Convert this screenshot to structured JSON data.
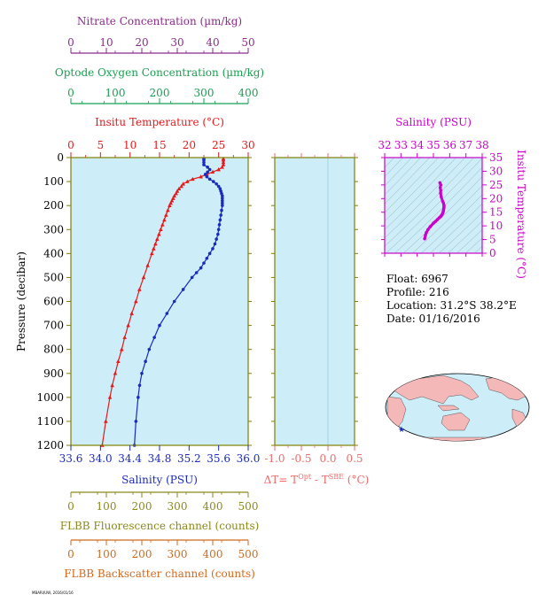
{
  "colors": {
    "nitrate": "#8b2a8b",
    "oxygen": "#18a050",
    "temperature": "#e41a1c",
    "salinity": "#1a2bbf",
    "delta_t": "#f06a6a",
    "ts": "#cc00cc",
    "fluorescence": "#8a8a1a",
    "backscatter": "#d2691e",
    "plot_bg": "#cdeef8",
    "frame": "#808000"
  },
  "info": {
    "float": "Float:  6967",
    "profile": "Profile:  216",
    "location": "Location:  31.2°S  38.2°E",
    "date": "Date:  01/16/2016"
  },
  "footer_text": "MBARI/UW, 2016/01/16",
  "map": {
    "marker_icon": "star-icon",
    "marker_color": "#1a2bbf"
  },
  "chart_data": [
    {
      "type": "line",
      "name": "profile",
      "ylabel": "Pressure (decibar)",
      "ylim": [
        1200,
        0
      ],
      "yticks": [
        0,
        100,
        200,
        300,
        400,
        500,
        600,
        700,
        800,
        900,
        1000,
        1100,
        1200
      ],
      "axes": {
        "nitrate": {
          "label": "Nitrate Concentration (µm/kg)",
          "range": [
            0,
            50
          ],
          "ticks": [
            0,
            10,
            20,
            30,
            40,
            50
          ]
        },
        "oxygen": {
          "label": "Optode Oxygen Concentration (µm/kg)",
          "range": [
            0,
            400
          ],
          "ticks": [
            0,
            100,
            200,
            300,
            400
          ]
        },
        "temperature": {
          "label": "Insitu Temperature (°C)",
          "range": [
            0,
            30
          ],
          "ticks": [
            0,
            5,
            10,
            15,
            20,
            25,
            30
          ]
        },
        "salinity": {
          "label": "Salinity (PSU)",
          "range": [
            33.6,
            36.0
          ],
          "ticks": [
            "33.6",
            "34.0",
            "34.4",
            "34.8",
            "35.2",
            "35.6",
            "36.0"
          ]
        },
        "fluorescence": {
          "label": "FLBB Fluorescence channel (counts)",
          "range": [
            0,
            500
          ],
          "ticks": [
            0,
            100,
            200,
            300,
            400,
            500
          ]
        },
        "backscatter": {
          "label": "FLBB Backscatter channel (counts)",
          "range": [
            0,
            500
          ],
          "ticks": [
            0,
            100,
            200,
            300,
            400,
            500
          ]
        }
      },
      "series": [
        {
          "name": "temperature",
          "pressure": [
            5,
            10,
            20,
            30,
            40,
            50,
            60,
            70,
            80,
            90,
            100,
            110,
            120,
            130,
            140,
            150,
            160,
            170,
            180,
            190,
            200,
            220,
            240,
            260,
            280,
            300,
            320,
            340,
            360,
            380,
            400,
            450,
            500,
            550,
            600,
            650,
            700,
            750,
            800,
            850,
            900,
            950,
            1000,
            1100,
            1200
          ],
          "values": [
            25.8,
            25.8,
            25.8,
            25.8,
            25.6,
            25.0,
            24.0,
            23.0,
            22.0,
            20.6,
            19.7,
            19.0,
            18.7,
            18.3,
            18.0,
            17.8,
            17.5,
            17.3,
            17.1,
            16.9,
            16.7,
            16.4,
            16.1,
            15.8,
            15.5,
            15.2,
            14.9,
            14.6,
            14.3,
            14.0,
            13.7,
            13.0,
            12.3,
            11.6,
            11.0,
            10.3,
            9.7,
            9.1,
            8.6,
            8.0,
            7.5,
            7.0,
            6.6,
            5.9,
            5.3
          ]
        },
        {
          "name": "salinity",
          "pressure": [
            5,
            10,
            20,
            30,
            40,
            50,
            60,
            70,
            80,
            90,
            100,
            110,
            120,
            130,
            140,
            150,
            160,
            170,
            180,
            190,
            200,
            220,
            240,
            260,
            280,
            300,
            320,
            340,
            360,
            380,
            400,
            420,
            440,
            460,
            480,
            500,
            550,
            600,
            650,
            700,
            750,
            800,
            850,
            900,
            950,
            1000,
            1100,
            1200
          ],
          "values": [
            35.4,
            35.4,
            35.4,
            35.4,
            35.45,
            35.48,
            35.45,
            35.42,
            35.44,
            35.48,
            35.53,
            35.57,
            35.6,
            35.62,
            35.63,
            35.64,
            35.65,
            35.65,
            35.65,
            35.65,
            35.65,
            35.64,
            35.63,
            35.62,
            35.61,
            35.6,
            35.59,
            35.57,
            35.55,
            35.52,
            35.48,
            35.44,
            35.4,
            35.36,
            35.3,
            35.24,
            35.12,
            35.0,
            34.9,
            34.8,
            34.73,
            34.66,
            34.61,
            34.56,
            34.53,
            34.51,
            34.48,
            34.46
          ]
        }
      ]
    },
    {
      "type": "line",
      "name": "delta_t",
      "xlabel": "ΔT= TOpt - TSBE (°C)",
      "xlim": [
        -1.0,
        0.5
      ],
      "xticks": [
        "-1.0",
        "-0.5",
        "0.0",
        "0.5"
      ],
      "series": []
    },
    {
      "type": "scatter",
      "name": "ts",
      "title": "Salinity (PSU)",
      "xlim": [
        32,
        38
      ],
      "xticks": [
        32,
        33,
        34,
        35,
        36,
        37,
        38
      ],
      "ylabel": "Insitu Temperature (°C)",
      "ylim": [
        0,
        35
      ],
      "yticks": [
        0,
        5,
        10,
        15,
        20,
        25,
        30,
        35
      ],
      "series": [
        {
          "name": "ts",
          "x": [
            34.46,
            34.51,
            34.56,
            34.66,
            34.8,
            35.0,
            35.12,
            35.24,
            35.36,
            35.44,
            35.48,
            35.52,
            35.57,
            35.6,
            35.62,
            35.64,
            35.65,
            35.65,
            35.62,
            35.57,
            35.48,
            35.44,
            35.45,
            35.42,
            35.45,
            35.4
          ],
          "y": [
            5.3,
            6.6,
            7.5,
            8.6,
            9.7,
            11.0,
            11.6,
            12.3,
            13.0,
            13.4,
            13.7,
            14.0,
            14.6,
            15.2,
            15.8,
            16.4,
            16.9,
            17.5,
            18.3,
            19.0,
            20.6,
            22.0,
            23.0,
            24.0,
            25.0,
            25.8
          ]
        }
      ]
    }
  ]
}
